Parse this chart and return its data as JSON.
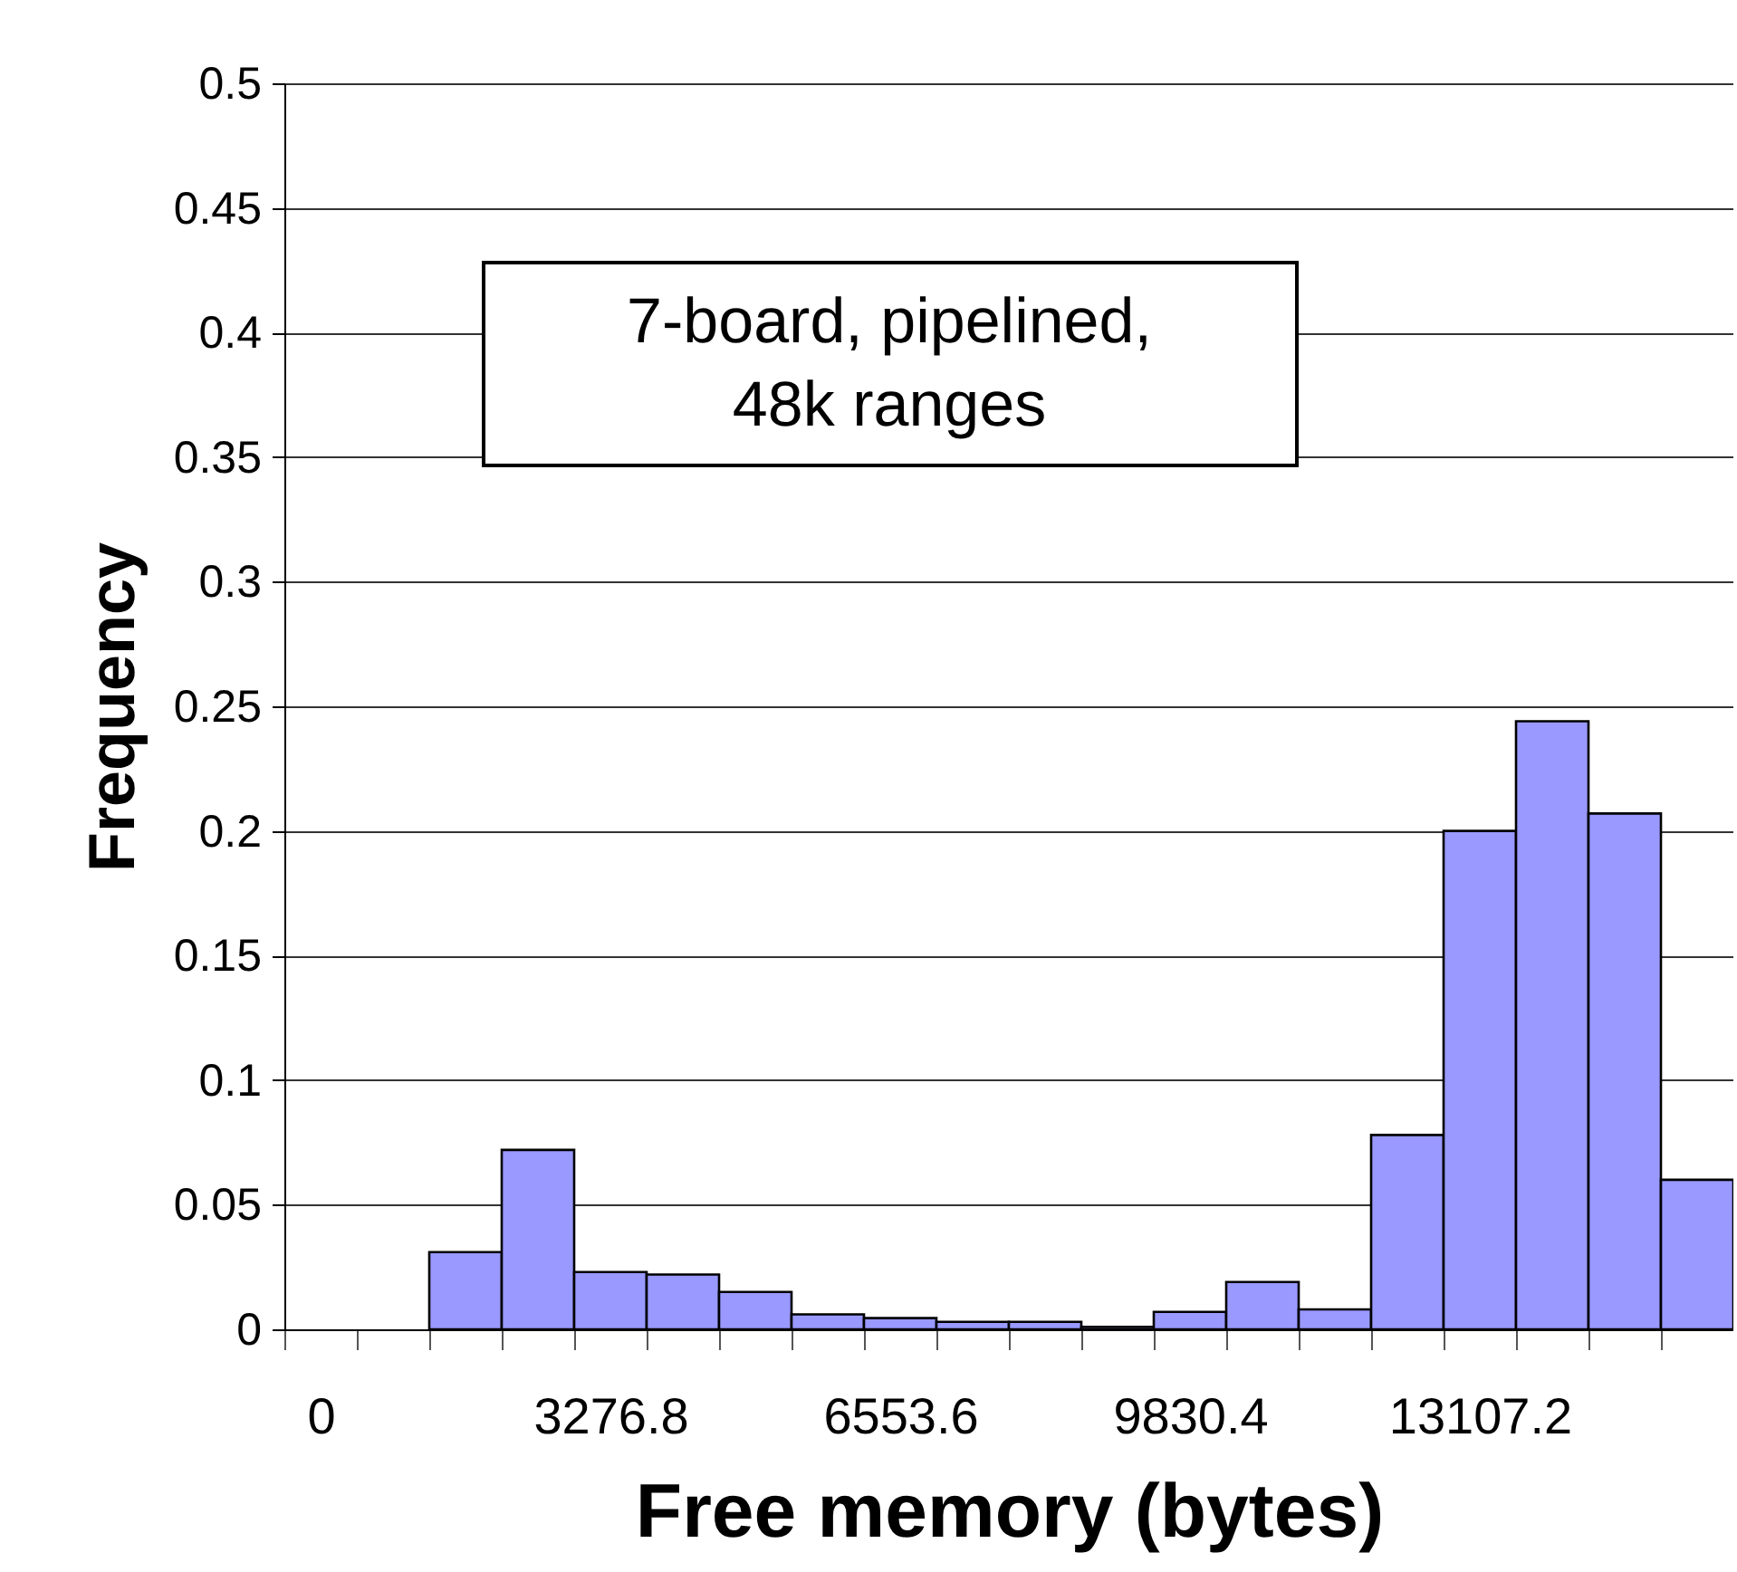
{
  "chart_data": {
    "type": "bar",
    "xlabel": "Free memory (bytes)",
    "ylabel": "Frequency",
    "categories": [
      "0",
      null,
      null,
      null,
      "3276.8",
      null,
      null,
      null,
      "6553.6",
      null,
      null,
      null,
      "9830.4",
      null,
      null,
      null,
      "13107.2",
      null,
      null,
      null
    ],
    "values": [
      null,
      null,
      0.031,
      0.072,
      0.023,
      0.022,
      0.015,
      0.006,
      0.0045,
      0.003,
      0.003,
      0.001,
      0.007,
      0.019,
      0.008,
      0.078,
      0.2,
      0.244,
      0.207,
      0.06
    ],
    "color": "#9999ff",
    "ylim": [
      0,
      0.5
    ],
    "yticks": [
      0,
      0.05,
      0.1,
      0.15,
      0.2,
      0.25,
      0.3,
      0.35,
      0.4,
      0.45,
      0.5
    ],
    "grid": "y",
    "annotations": [
      "7-board, pipelined,\n48k ranges"
    ]
  }
}
